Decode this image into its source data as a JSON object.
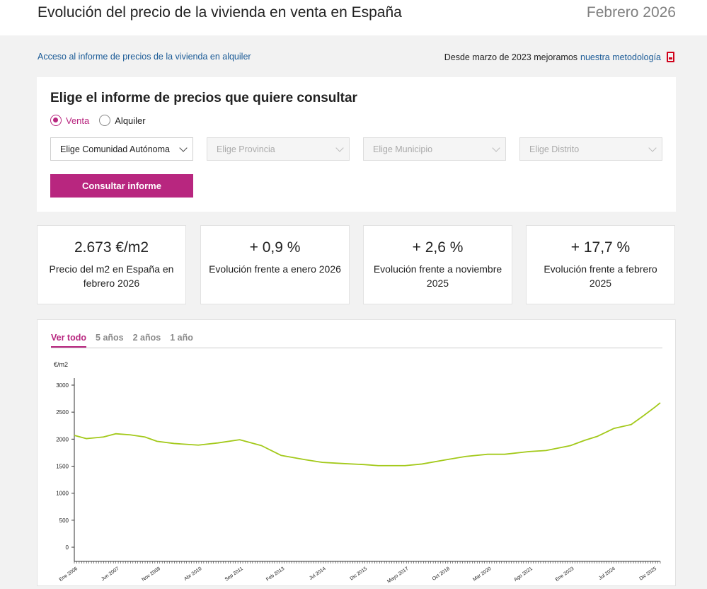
{
  "header": {
    "title": "Evolución del precio de la vivienda en venta en España",
    "date": "Febrero 2026"
  },
  "links": {
    "rent_report": "Acceso al informe de precios de la vivienda en alquiler",
    "method_prefix": "Desde marzo de 2023 mejoramos",
    "method_link": "nuestra metodología"
  },
  "form": {
    "title": "Elige el informe de precios que quiere consultar",
    "radio_sale": "Venta",
    "radio_rent": "Alquiler",
    "selects": [
      "Elige Comunidad Autónoma",
      "Elige Provincia",
      "Elige Municipio",
      "Elige Distrito"
    ],
    "button": "Consultar informe"
  },
  "kpis": [
    {
      "value": "2.673 €/m2",
      "label": "Precio del m2 en España en febrero 2026"
    },
    {
      "value": "+ 0,9 %",
      "label": "Evolución frente a enero 2026"
    },
    {
      "value": "+ 2,6 %",
      "label": "Evolución frente a noviembre 2025"
    },
    {
      "value": "+ 17,7 %",
      "label": "Evolución frente a febrero 2025"
    }
  ],
  "tabs": [
    "Ver todo",
    "5 años",
    "2 años",
    "1 año"
  ],
  "colors": {
    "accent": "#b8267f",
    "line": "#a3c91a",
    "link": "#1a5a96"
  },
  "chart_data": {
    "type": "line",
    "ylabel": "€/m2",
    "ylim": [
      0,
      3000
    ],
    "yticks": [
      0,
      500,
      1000,
      1500,
      2000,
      2500,
      3000
    ],
    "xtick_labels": [
      "Ene 2006",
      "Jun 2007",
      "Nov 2008",
      "Abr 2010",
      "Sep 2011",
      "Feb 2013",
      "Jul 2014",
      "Dic 2015",
      "Mayo 2017",
      "Oct 2018",
      "Mar 2020",
      "Ago 2021",
      "Ene 2023",
      "Jul 2024",
      "Dic 2025"
    ],
    "series": [
      {
        "x": [
          "Ene 2006",
          "Jun 2006",
          "Ene 2007",
          "Jun 2007",
          "Dic 2007",
          "Jun 2008",
          "Nov 2008",
          "Jun 2009",
          "Abr 2010",
          "Dic 2010",
          "Sep 2011",
          "Jun 2012",
          "Feb 2013",
          "Dic 2013",
          "Jul 2014",
          "Mar 2015",
          "Dic 2015",
          "Jun 2016",
          "Mayo 2017",
          "Dic 2017",
          "Oct 2018",
          "Jun 2019",
          "Mar 2020",
          "Oct 2020",
          "Ago 2021",
          "Mar 2022",
          "Ene 2023",
          "Jul 2023",
          "Dic 2023",
          "Jul 2024",
          "Feb 2025",
          "Jul 2025",
          "Dic 2025",
          "Feb 2026"
        ],
        "values": [
          2070,
          2010,
          2040,
          2100,
          2080,
          2040,
          1960,
          1920,
          1890,
          1930,
          1990,
          1880,
          1700,
          1620,
          1570,
          1550,
          1530,
          1510,
          1510,
          1540,
          1620,
          1680,
          1720,
          1720,
          1770,
          1790,
          1880,
          1980,
          2050,
          2200,
          2270,
          2430,
          2600,
          2673
        ]
      }
    ]
  }
}
